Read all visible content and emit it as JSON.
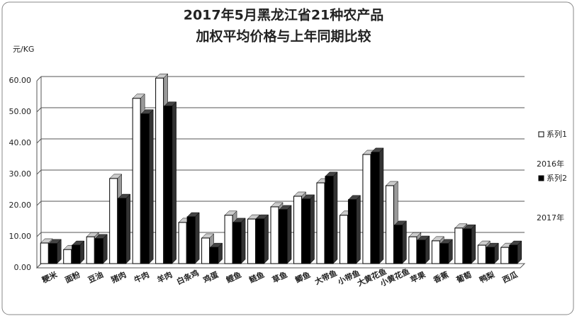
{
  "chart_data": {
    "type": "bar",
    "title": "2017年5月黑龙江省21种农产品",
    "subtitle": "加权平均价格与上年同期比较",
    "y_label": "元/KG",
    "categories": [
      "粳米",
      "面粉",
      "豆油",
      "猪肉",
      "牛肉",
      "羊肉",
      "白条鸡",
      "鸡蛋",
      "鲤鱼",
      "鲢鱼",
      "草鱼",
      "鲫鱼",
      "大带鱼",
      "小带鱼",
      "大黄花鱼",
      "小黄花鱼",
      "苹果",
      "香蕉",
      "葡萄",
      "鸭梨",
      "西瓜"
    ],
    "series": [
      {
        "name": "系列1",
        "color": "#ffffff",
        "values": [
          6.6,
          4.5,
          8.6,
          27.3,
          53,
          59.5,
          13.2,
          8.2,
          15.5,
          14.3,
          18.2,
          21.6,
          25.9,
          15.5,
          35,
          25,
          8.6,
          7.3,
          11.4,
          5.9,
          5.2
        ]
      },
      {
        "name": "系列2",
        "color": "#000000",
        "values": [
          6.4,
          5.9,
          8.0,
          20.9,
          48,
          50.5,
          15,
          5.2,
          13.2,
          14.3,
          17.3,
          20.7,
          28,
          20.5,
          35.7,
          12.3,
          7.5,
          6.4,
          11.1,
          5.2,
          5.9
        ]
      }
    ],
    "annotations": [
      "2016年",
      "2017年"
    ],
    "ylim": [
      0,
      60
    ],
    "yticks": [
      {
        "value": 0,
        "label": "0.00"
      },
      {
        "value": 10,
        "label": "10.00"
      },
      {
        "value": 20,
        "label": "20.00"
      },
      {
        "value": 30,
        "label": "30.00"
      },
      {
        "value": 40,
        "label": "40.00"
      },
      {
        "value": 50,
        "label": "50.00"
      },
      {
        "value": 60,
        "label": "60.00"
      }
    ],
    "grid": true
  }
}
